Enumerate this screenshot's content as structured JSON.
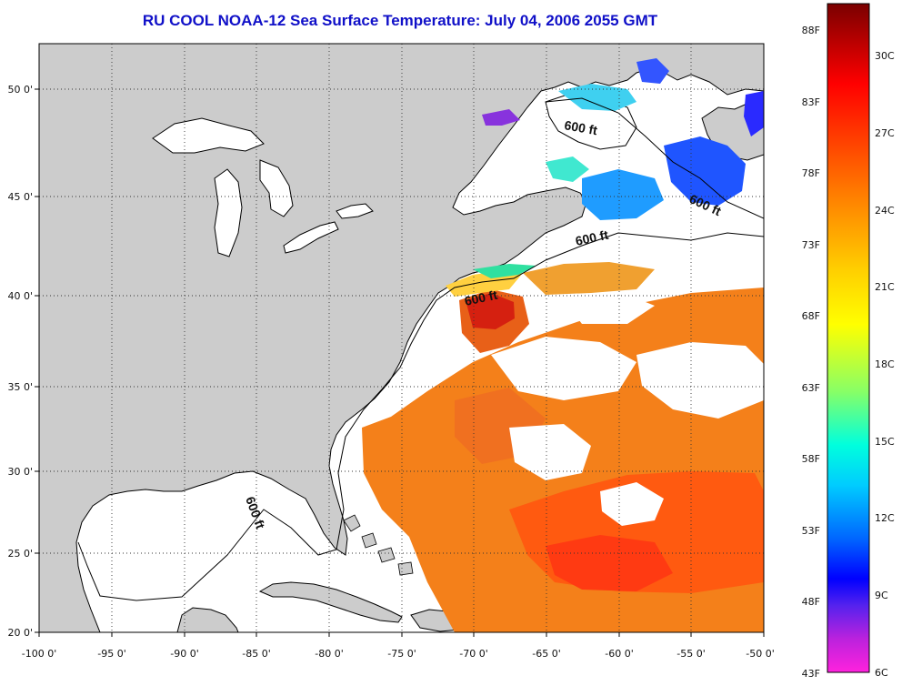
{
  "title": "RU COOL  NOAA-12  Sea Surface Temperature:  July 04, 2006 2055 GMT",
  "map": {
    "lon_range": [
      -100,
      -50
    ],
    "lat_range": [
      20,
      52.5
    ],
    "lat_labels": [
      "20 0'",
      "25 0'",
      "30 0'",
      "35 0'",
      "40 0'",
      "45 0'",
      "50 0'"
    ],
    "lon_labels": [
      "-100 0'",
      "-95 0'",
      "-90 0'",
      "-85 0'",
      "-80 0'",
      "-75 0'",
      "-70 0'",
      "-65 0'",
      "-60 0'",
      "-55 0'",
      "-50 0'"
    ],
    "land_color": "#cccccc",
    "contour_labels": [
      "600 ft",
      "600 ft",
      "600 ft",
      "600 ft",
      "600 ft"
    ]
  },
  "colorbar": {
    "fahrenheit_labels": [
      "88F",
      "83F",
      "78F",
      "73F",
      "68F",
      "63F",
      "58F",
      "53F",
      "48F",
      "43F"
    ],
    "celsius_labels": [
      "30C",
      "27C",
      "24C",
      "21C",
      "18C",
      "15C",
      "12C",
      "9C",
      "6C"
    ],
    "range_c": [
      6,
      31.5
    ]
  }
}
